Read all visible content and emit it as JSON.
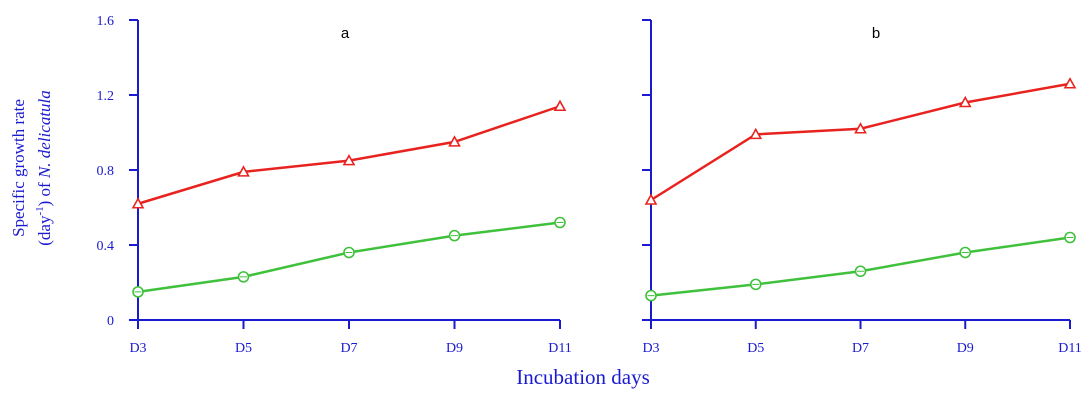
{
  "chart_data": [
    {
      "type": "line",
      "panel_label": "a",
      "categories": [
        "D3",
        "D5",
        "D7",
        "D9",
        "D11"
      ],
      "y_ticks": [
        "0",
        "0.4",
        "0.8",
        "1.2",
        "1.6"
      ],
      "ylim": [
        0,
        1.6
      ],
      "series": [
        {
          "marker": "triangle",
          "color": "#e8231f",
          "values": [
            0.62,
            0.79,
            0.85,
            0.95,
            1.14
          ]
        },
        {
          "marker": "circle",
          "color": "#3fc13c",
          "values": [
            0.15,
            0.23,
            0.36,
            0.45,
            0.52
          ]
        }
      ]
    },
    {
      "type": "line",
      "panel_label": "b",
      "categories": [
        "D3",
        "D5",
        "D7",
        "D9",
        "D11"
      ],
      "y_ticks": [],
      "ylim": [
        0,
        1.6
      ],
      "series": [
        {
          "marker": "triangle",
          "color": "#e8231f",
          "values": [
            0.64,
            0.99,
            1.02,
            1.16,
            1.26
          ]
        },
        {
          "marker": "circle",
          "color": "#3fc13c",
          "values": [
            0.13,
            0.19,
            0.26,
            0.36,
            0.44
          ]
        }
      ]
    }
  ],
  "ylabel_line1": "Specific growth rate",
  "ylabel_line2_prefix": "(day",
  "ylabel_line2_sup": "-1",
  "ylabel_line2_mid": ") of ",
  "ylabel_line2_italic": "N. delicatula",
  "xlabel": "Incubation days",
  "colors": {
    "axis": "#1a1ad0",
    "text": "#1a1ad0"
  }
}
